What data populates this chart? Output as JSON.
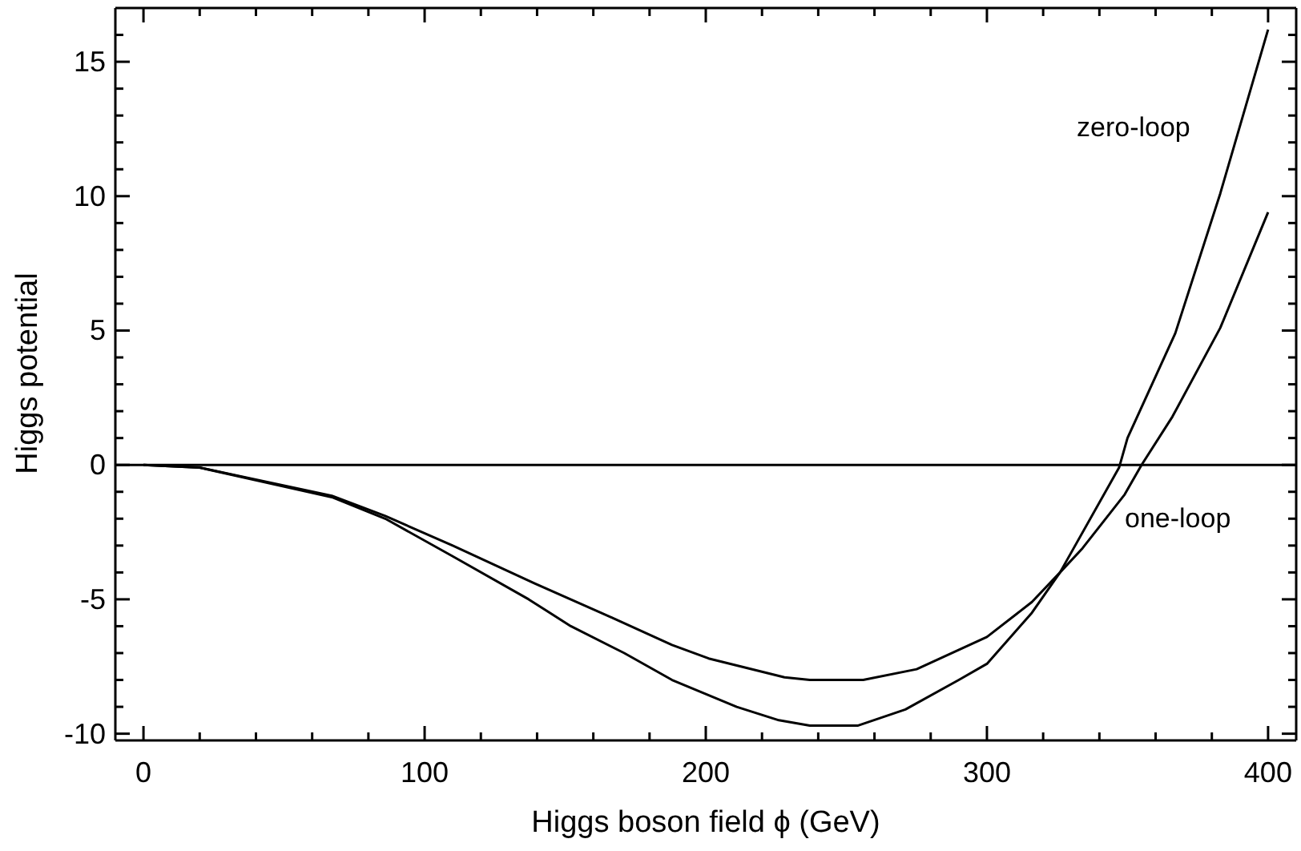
{
  "chart_data": {
    "type": "line",
    "xlabel": "Higgs boson field ϕ (GeV)",
    "ylabel": "Higgs potential",
    "xlim": [
      -10,
      410
    ],
    "ylim": [
      -10.25,
      17
    ],
    "xticks": [
      0,
      {
        "value": 20,
        "label": null
      },
      {
        "value": 40,
        "label": null
      },
      {
        "value": 60,
        "label": null
      },
      {
        "value": 80,
        "label": null
      },
      100,
      {
        "value": 120,
        "label": null
      },
      {
        "value": 140,
        "label": null
      },
      {
        "value": 160,
        "label": null
      },
      {
        "value": 180,
        "label": null
      },
      200,
      {
        "value": 220,
        "label": null
      },
      {
        "value": 240,
        "label": null
      },
      {
        "value": 260,
        "label": null
      },
      {
        "value": 280,
        "label": null
      },
      300,
      {
        "value": 320,
        "label": null
      },
      {
        "value": 340,
        "label": null
      },
      {
        "value": 360,
        "label": null
      },
      {
        "value": 380,
        "label": null
      },
      400
    ],
    "yticks": [
      -10,
      {
        "value": -9,
        "label": null
      },
      {
        "value": -8,
        "label": null
      },
      {
        "value": -7,
        "label": null
      },
      {
        "value": -6,
        "label": null
      },
      -5,
      {
        "value": -4,
        "label": null
      },
      {
        "value": -3,
        "label": null
      },
      {
        "value": -2,
        "label": null
      },
      {
        "value": -1,
        "label": null
      },
      0,
      {
        "value": 1,
        "label": null
      },
      {
        "value": 2,
        "label": null
      },
      {
        "value": 3,
        "label": null
      },
      {
        "value": 4,
        "label": null
      },
      5,
      {
        "value": 6,
        "label": null
      },
      {
        "value": 7,
        "label": null
      },
      {
        "value": 8,
        "label": null
      },
      {
        "value": 9,
        "label": null
      },
      10,
      {
        "value": 11,
        "label": null
      },
      {
        "value": 12,
        "label": null
      },
      {
        "value": 13,
        "label": null
      },
      {
        "value": 14,
        "label": null
      },
      15,
      {
        "value": 16,
        "label": null
      }
    ],
    "series": [
      {
        "color": "#000000",
        "x": [
          0,
          20,
          67,
          86,
          110,
          137,
          152,
          171,
          188,
          211,
          226,
          237,
          254,
          271,
          290,
          300,
          316,
          326,
          347,
          350,
          367,
          383,
          400
        ],
        "values": [
          0,
          -0.1,
          -1.2,
          -2.0,
          -3.4,
          -5.0,
          -6.0,
          -7.0,
          -8.0,
          -9.0,
          -9.5,
          -9.7,
          -9.7,
          -9.1,
          -8.0,
          -7.4,
          -5.5,
          -4.0,
          -0.1,
          1.0,
          4.9,
          10.1,
          16.2
        ]
      },
      {
        "color": "#000000",
        "x": [
          0,
          20,
          67,
          86,
          110,
          139,
          167,
          188,
          201,
          228,
          237,
          256,
          275,
          300,
          316,
          326,
          334,
          349,
          355,
          366,
          383,
          400
        ],
        "values": [
          0,
          -0.1,
          -1.15,
          -1.9,
          -3.0,
          -4.4,
          -5.7,
          -6.7,
          -7.2,
          -7.9,
          -8.0,
          -8.0,
          -7.6,
          -6.4,
          -5.1,
          -4.0,
          -3.1,
          -1.1,
          0,
          1.8,
          5.1,
          9.4
        ]
      }
    ],
    "ref_lines": [
      {
        "axis": "y",
        "value": 0,
        "color": "#000000"
      }
    ],
    "annotations": [
      "zero-loop",
      "one-loop"
    ],
    "marker": "none",
    "line_style": "solid"
  }
}
